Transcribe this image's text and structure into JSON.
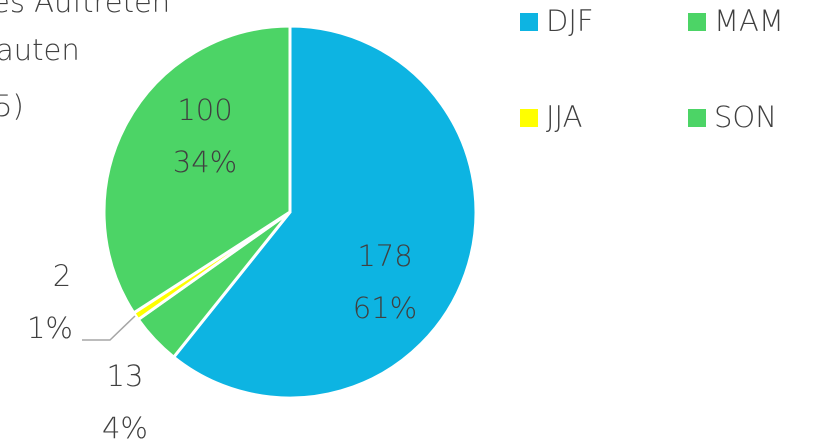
{
  "chart_data": {
    "type": "pie",
    "title_lines": [
      "es Auftreten",
      "auten",
      "5)"
    ],
    "categories": [
      "DJF",
      "MAM",
      "JJA",
      "SON"
    ],
    "values": [
      178,
      13,
      2,
      100
    ],
    "percentages": [
      61,
      4,
      1,
      34
    ],
    "percentage_labels": [
      "61%",
      "4%",
      "1%",
      "34%"
    ],
    "colors": [
      "#0db4e2",
      "#4cd466",
      "#ffff00",
      "#4cd466"
    ],
    "legend": "top-right"
  }
}
